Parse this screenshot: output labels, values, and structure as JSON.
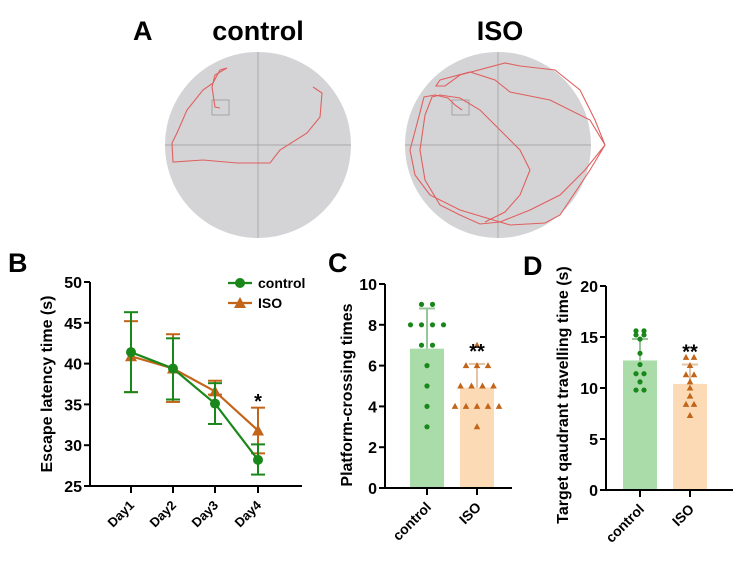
{
  "colors": {
    "control": "#1a871a",
    "iso": "#c2651a",
    "control_bar": "#a9dca9",
    "iso_bar": "#fcdab6",
    "track": "#e06060",
    "pool": "#d4d4d6"
  },
  "chart_data": [
    {
      "panel": "A",
      "type": "other",
      "labels": [
        "control",
        "ISO"
      ]
    },
    {
      "panel": "B",
      "type": "line",
      "ylabel": "Escape latency time (s)",
      "ylim": [
        25,
        50
      ],
      "yticks": [
        25,
        30,
        35,
        40,
        45,
        50
      ],
      "categories": [
        "Day1",
        "Day2",
        "Day3",
        "Day4"
      ],
      "series": [
        {
          "name": "control",
          "marker": "circle",
          "values": [
            41.4,
            39.4,
            35.1,
            28.2
          ],
          "err_low": [
            36.5,
            35.6,
            32.6,
            26.4
          ],
          "err_high": [
            46.3,
            43.1,
            37.6,
            30.1
          ]
        },
        {
          "name": "ISO",
          "marker": "triangle",
          "values": [
            40.9,
            39.4,
            36.6,
            31.8
          ],
          "err_low": [
            36.5,
            35.3,
            36.2,
            29.0
          ],
          "err_high": [
            45.2,
            43.6,
            37.9,
            34.6
          ]
        }
      ],
      "annotations": [
        {
          "category": "Day4",
          "text": "*"
        }
      ],
      "legend": "top-right"
    },
    {
      "panel": "C",
      "type": "bar",
      "ylabel": "Platform-crossing times",
      "ylim": [
        0,
        10
      ],
      "yticks": [
        0,
        2,
        4,
        6,
        8,
        10
      ],
      "categories": [
        "control",
        "ISO"
      ],
      "values": [
        6.83,
        4.92
      ],
      "sd_high": [
        8.8,
        6.08
      ],
      "points": [
        [
          9,
          9,
          8,
          8,
          8,
          8,
          7,
          7,
          6,
          5,
          4,
          3
        ],
        [
          7,
          6,
          6,
          6,
          5,
          5,
          5,
          5,
          4,
          4,
          4,
          4,
          4,
          3
        ]
      ],
      "annotations": [
        {
          "category": "ISO",
          "text": "**"
        }
      ]
    },
    {
      "panel": "D",
      "type": "bar",
      "ylabel": "Target qaudrant travelling time (s)",
      "ylim": [
        0,
        20
      ],
      "yticks": [
        0,
        5,
        10,
        15,
        20
      ],
      "categories": [
        "control",
        "ISO"
      ],
      "values": [
        12.7,
        10.4
      ],
      "sd_high": [
        14.8,
        12.3
      ],
      "points": [
        [
          15.6,
          15.6,
          15.2,
          15.2,
          14.8,
          13.4,
          12.3,
          11.4,
          11.4,
          10.6,
          9.8,
          9.8
        ],
        [
          13.0,
          13.0,
          12.2,
          11.3,
          11.3,
          10.6,
          10.0,
          9.2,
          8.4,
          8.4,
          7.3
        ]
      ],
      "annotations": [
        {
          "category": "ISO",
          "text": "**"
        }
      ]
    }
  ]
}
